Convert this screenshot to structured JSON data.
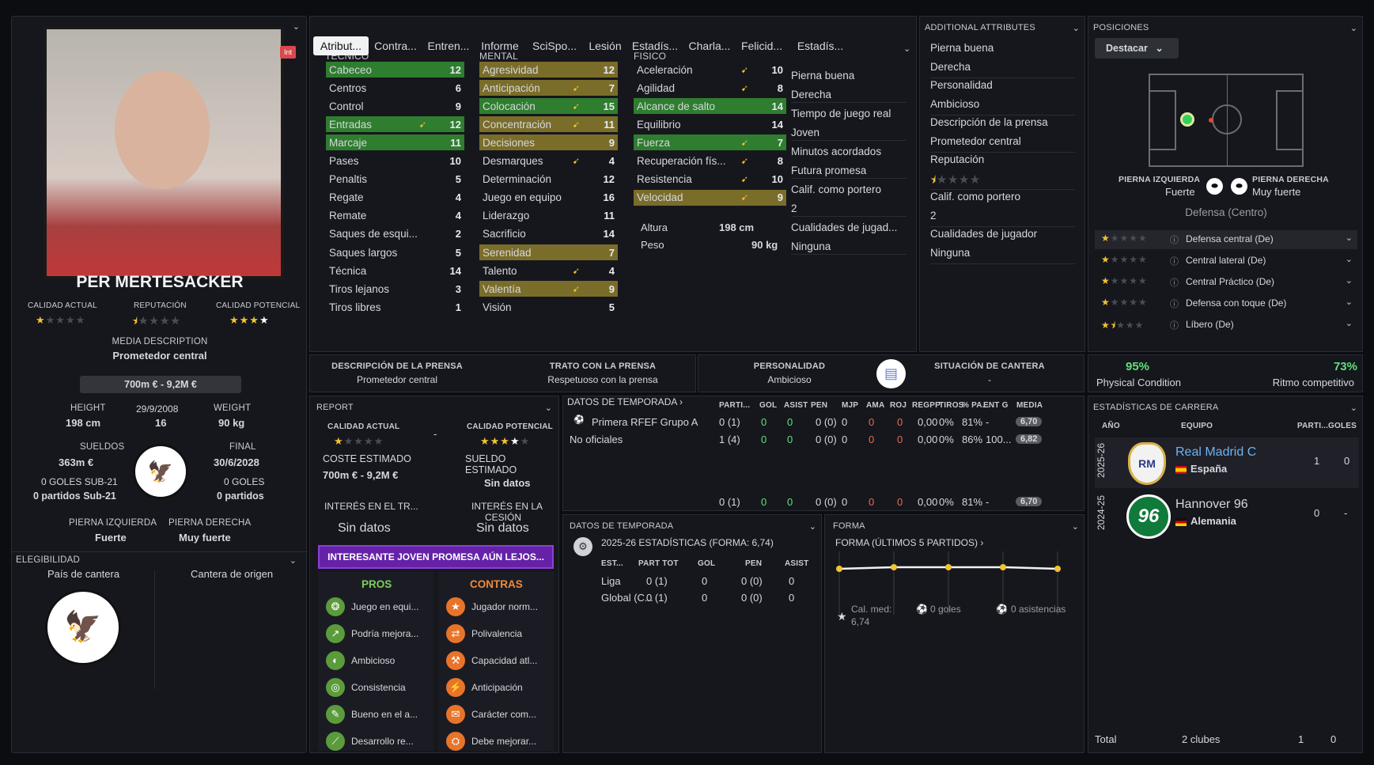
{
  "player": {
    "name": "PER MERTESACKER",
    "badge": "Int",
    "ca_label": "CALIDAD ACTUAL",
    "rep_label": "REPUTACIÓN",
    "pa_label": "CALIDAD POTENCIAL",
    "media_desc_label": "MEDIA DESCRIPTION",
    "media_desc": "Prometedor central",
    "value": "700m € - 9,2M €",
    "height_label": "HEIGHT",
    "height": "198 cm",
    "dob": "29/9/2008",
    "age": "16",
    "weight_label": "WEIGHT",
    "weight": "90 kg",
    "wage_label": "SUELDOS",
    "wage": "363m €",
    "end_label": "FINAL",
    "end": "30/6/2028",
    "u21_goals": "0 GOLES SUB-21",
    "u21_apps": "0 partidos Sub-21",
    "goals": "0 GOLES",
    "apps": "0 partidos",
    "lf_label": "PIERNA IZQUIERDA",
    "lf": "Fuerte",
    "rf_label": "PIERNA DERECHA",
    "rf": "Muy fuerte",
    "elig": "ELEGIBILIDAD",
    "pais": "País de cantera",
    "cantera": "Cantera de origen",
    "ca_stars": 1,
    "rep_stars": 0.5,
    "pa_stars": 3.5
  },
  "tabs": [
    "Atribut...",
    "Contra...",
    "Entren...",
    "Informe",
    "SciSpo...",
    "Lesión",
    "Estadís...",
    "Charla...",
    "Felicid...",
    "Estadís..."
  ],
  "tecnico": {
    "title": "TECNICO",
    "rows": [
      [
        "Cabeceo",
        "12",
        "g",
        ""
      ],
      [
        "Centros",
        "6",
        "",
        ""
      ],
      [
        "Control",
        "9",
        "",
        ""
      ],
      [
        "Entradas",
        "12",
        "g",
        "a"
      ],
      [
        "Marcaje",
        "11",
        "g",
        ""
      ],
      [
        "Pases",
        "10",
        "",
        ""
      ],
      [
        "Penaltis",
        "5",
        "",
        ""
      ],
      [
        "Regate",
        "4",
        "",
        ""
      ],
      [
        "Remate",
        "4",
        "",
        ""
      ],
      [
        "Saques de esqui...",
        "2",
        "",
        ""
      ],
      [
        "Saques largos",
        "5",
        "",
        ""
      ],
      [
        "Técnica",
        "14",
        "",
        ""
      ],
      [
        "Tiros lejanos",
        "3",
        "",
        ""
      ],
      [
        "Tiros libres",
        "1",
        "",
        ""
      ]
    ]
  },
  "mental": {
    "title": "MENTAL",
    "rows": [
      [
        "Agresividad",
        "12",
        "y",
        ""
      ],
      [
        "Anticipación",
        "7",
        "y",
        "a"
      ],
      [
        "Colocación",
        "15",
        "g",
        "a"
      ],
      [
        "Concentración",
        "11",
        "y",
        "a"
      ],
      [
        "Decisiones",
        "9",
        "y",
        ""
      ],
      [
        "Desmarques",
        "4",
        "",
        "a"
      ],
      [
        "Determinación",
        "12",
        "",
        ""
      ],
      [
        "Juego en equipo",
        "16",
        "",
        ""
      ],
      [
        "Liderazgo",
        "11",
        "",
        ""
      ],
      [
        "Sacrificio",
        "14",
        "",
        ""
      ],
      [
        "Serenidad",
        "7",
        "y",
        ""
      ],
      [
        "Talento",
        "4",
        "",
        "a"
      ],
      [
        "Valentía",
        "9",
        "y",
        "a"
      ],
      [
        "Visión",
        "5",
        "",
        ""
      ]
    ]
  },
  "fisico": {
    "title": "FISICO",
    "rows": [
      [
        "Aceleración",
        "10",
        "",
        "a"
      ],
      [
        "Agilidad",
        "8",
        "",
        "a"
      ],
      [
        "Alcance de salto",
        "14",
        "g",
        ""
      ],
      [
        "Equilibrio",
        "14",
        "",
        ""
      ],
      [
        "Fuerza",
        "7",
        "g",
        "a"
      ],
      [
        "Recuperación fís...",
        "8",
        "",
        "a"
      ],
      [
        "Resistencia",
        "10",
        "",
        "a"
      ],
      [
        "Velocidad",
        "9",
        "y",
        "a"
      ]
    ],
    "altura_label": "Altura",
    "altura": "198 cm",
    "peso_label": "Peso",
    "peso": "90 kg"
  },
  "extra": [
    "Pierna buena",
    "Derecha",
    "Tiempo de juego real",
    "Joven",
    "Minutos acordados",
    "Futura promesa",
    "Calif. como portero",
    "2",
    "Cualidades de jugad...",
    "Ninguna"
  ],
  "additional": {
    "title": "ADDITIONAL ATTRIBUTES",
    "items": [
      "Pierna buena",
      "Derecha",
      "Personalidad",
      "Ambicioso",
      "Descripción de la prensa",
      "Prometedor central",
      "Reputación",
      "",
      "Calif. como portero",
      "2",
      "Cualidades de jugador",
      "Ninguna"
    ]
  },
  "posiciones": {
    "title": "POSICIONES",
    "btn": "Destacar",
    "lf_label": "PIERNA IZQUIERDA",
    "lf": "Fuerte",
    "rf_label": "PIERNA DERECHA",
    "rf": "Muy fuerte",
    "role": "Defensa (Centro)",
    "list": [
      "Defensa central (De)",
      "Central lateral (De)",
      "Central Práctico (De)",
      "Defensa con toque (De)",
      "Líbero (De)"
    ]
  },
  "press": {
    "d_label": "DESCRIPCIÓN DE LA PRENSA",
    "d": "Prometedor central",
    "t_label": "TRATO CON LA PRENSA",
    "t": "Respetuoso con la prensa",
    "p_label": "PERSONALIDAD",
    "p": "Ambicioso",
    "s_label": "SITUACIÓN DE CANTERA",
    "s": "-"
  },
  "condition": {
    "pc": "95%",
    "pc_label": "Physical Condition",
    "rc": "73%",
    "rc_label": "Ritmo competitivo"
  },
  "report": {
    "title": "REPORT",
    "ca": "CALIDAD ACTUAL",
    "pa": "CALIDAD POTENCIAL",
    "dash": "-",
    "coste_label": "COSTE ESTIMADO",
    "coste": "700m € - 9,2M €",
    "sueldo_label": "SUELDO ESTIMADO",
    "sueldo": "Sin datos",
    "int_tr": "INTERÉS EN EL TR...",
    "int_tr_v": "Sin datos",
    "int_c1": "INTERÉS EN LA",
    "int_c2": "CESIÓN",
    "int_c_v": "Sin datos",
    "banner": "INTERESANTE JOVEN PROMESA AÚN LEJOS...",
    "pros_title": "PROS",
    "contras_title": "CONTRAS",
    "pros": [
      "Juego en equi...",
      "Podría mejora...",
      "Ambicioso",
      "Consistencia",
      "Bueno en el a...",
      "Desarrollo re..."
    ],
    "contras": [
      "Jugador norm...",
      "Polivalencia",
      "Capacidad atl...",
      "Anticipación",
      "Carácter com...",
      "Debe mejorar..."
    ]
  },
  "season": {
    "title": "DATOS DE TEMPORADA",
    "cols": [
      "PARTI...",
      "GOL",
      "ASIST",
      "PEN",
      "MJP",
      "AMA",
      "ROJ",
      "REGPP",
      "TIROS",
      "% PA...",
      "ENT G",
      "MEDIA"
    ],
    "rows": [
      [
        "Primera RFEF Grupo A",
        "0 (1)",
        "0",
        "0",
        "0 (0)",
        "0",
        "0",
        "0",
        "0,00",
        "0%",
        "81%",
        "-",
        "6,70"
      ],
      [
        "No oficiales",
        "1 (4)",
        "0",
        "0",
        "0 (0)",
        "0",
        "0",
        "0",
        "0,00",
        "0%",
        "86%",
        "100...",
        "6,82"
      ]
    ],
    "total": [
      "",
      "0 (1)",
      "0",
      "0",
      "0 (0)",
      "0",
      "0",
      "0",
      "0,00",
      "0%",
      "81%",
      "-",
      "6,70"
    ]
  },
  "season2": {
    "title": "DATOS DE TEMPORADA",
    "sub": "2025-26 ESTADÍSTICAS (FORMA: 6,74)",
    "cols": [
      "EST...",
      "PART TOT",
      "GOL",
      "PEN",
      "ASIST"
    ],
    "rows": [
      [
        "Liga",
        "0 (1)",
        "0",
        "0 (0)",
        "0"
      ],
      [
        "Global (C...",
        "0 (1)",
        "0",
        "0 (0)",
        "0"
      ]
    ]
  },
  "forma": {
    "title": "FORMA",
    "sub": "FORMA (ÚLTIMOS 5 PARTIDOS)",
    "cal_label": "Cal. med:",
    "cal": "6,74",
    "goles": "0 goles",
    "asist": "0 asistencias"
  },
  "career": {
    "title": "ESTADÍSTICAS DE CARRERA",
    "cols": [
      "AÑO",
      "EQUIPO",
      "PARTI...",
      "GOLES"
    ],
    "rows": [
      {
        "year": "2025-26",
        "team": "Real Madrid C",
        "country": "España",
        "apps": "1",
        "goals": "0"
      },
      {
        "year": "2024-25",
        "team": "Hannover 96",
        "country": "Alemania",
        "apps": "0",
        "goals": "-"
      }
    ],
    "total_label": "Total",
    "total_clubs": "2 clubes",
    "total_apps": "1",
    "total_goals": "0"
  }
}
